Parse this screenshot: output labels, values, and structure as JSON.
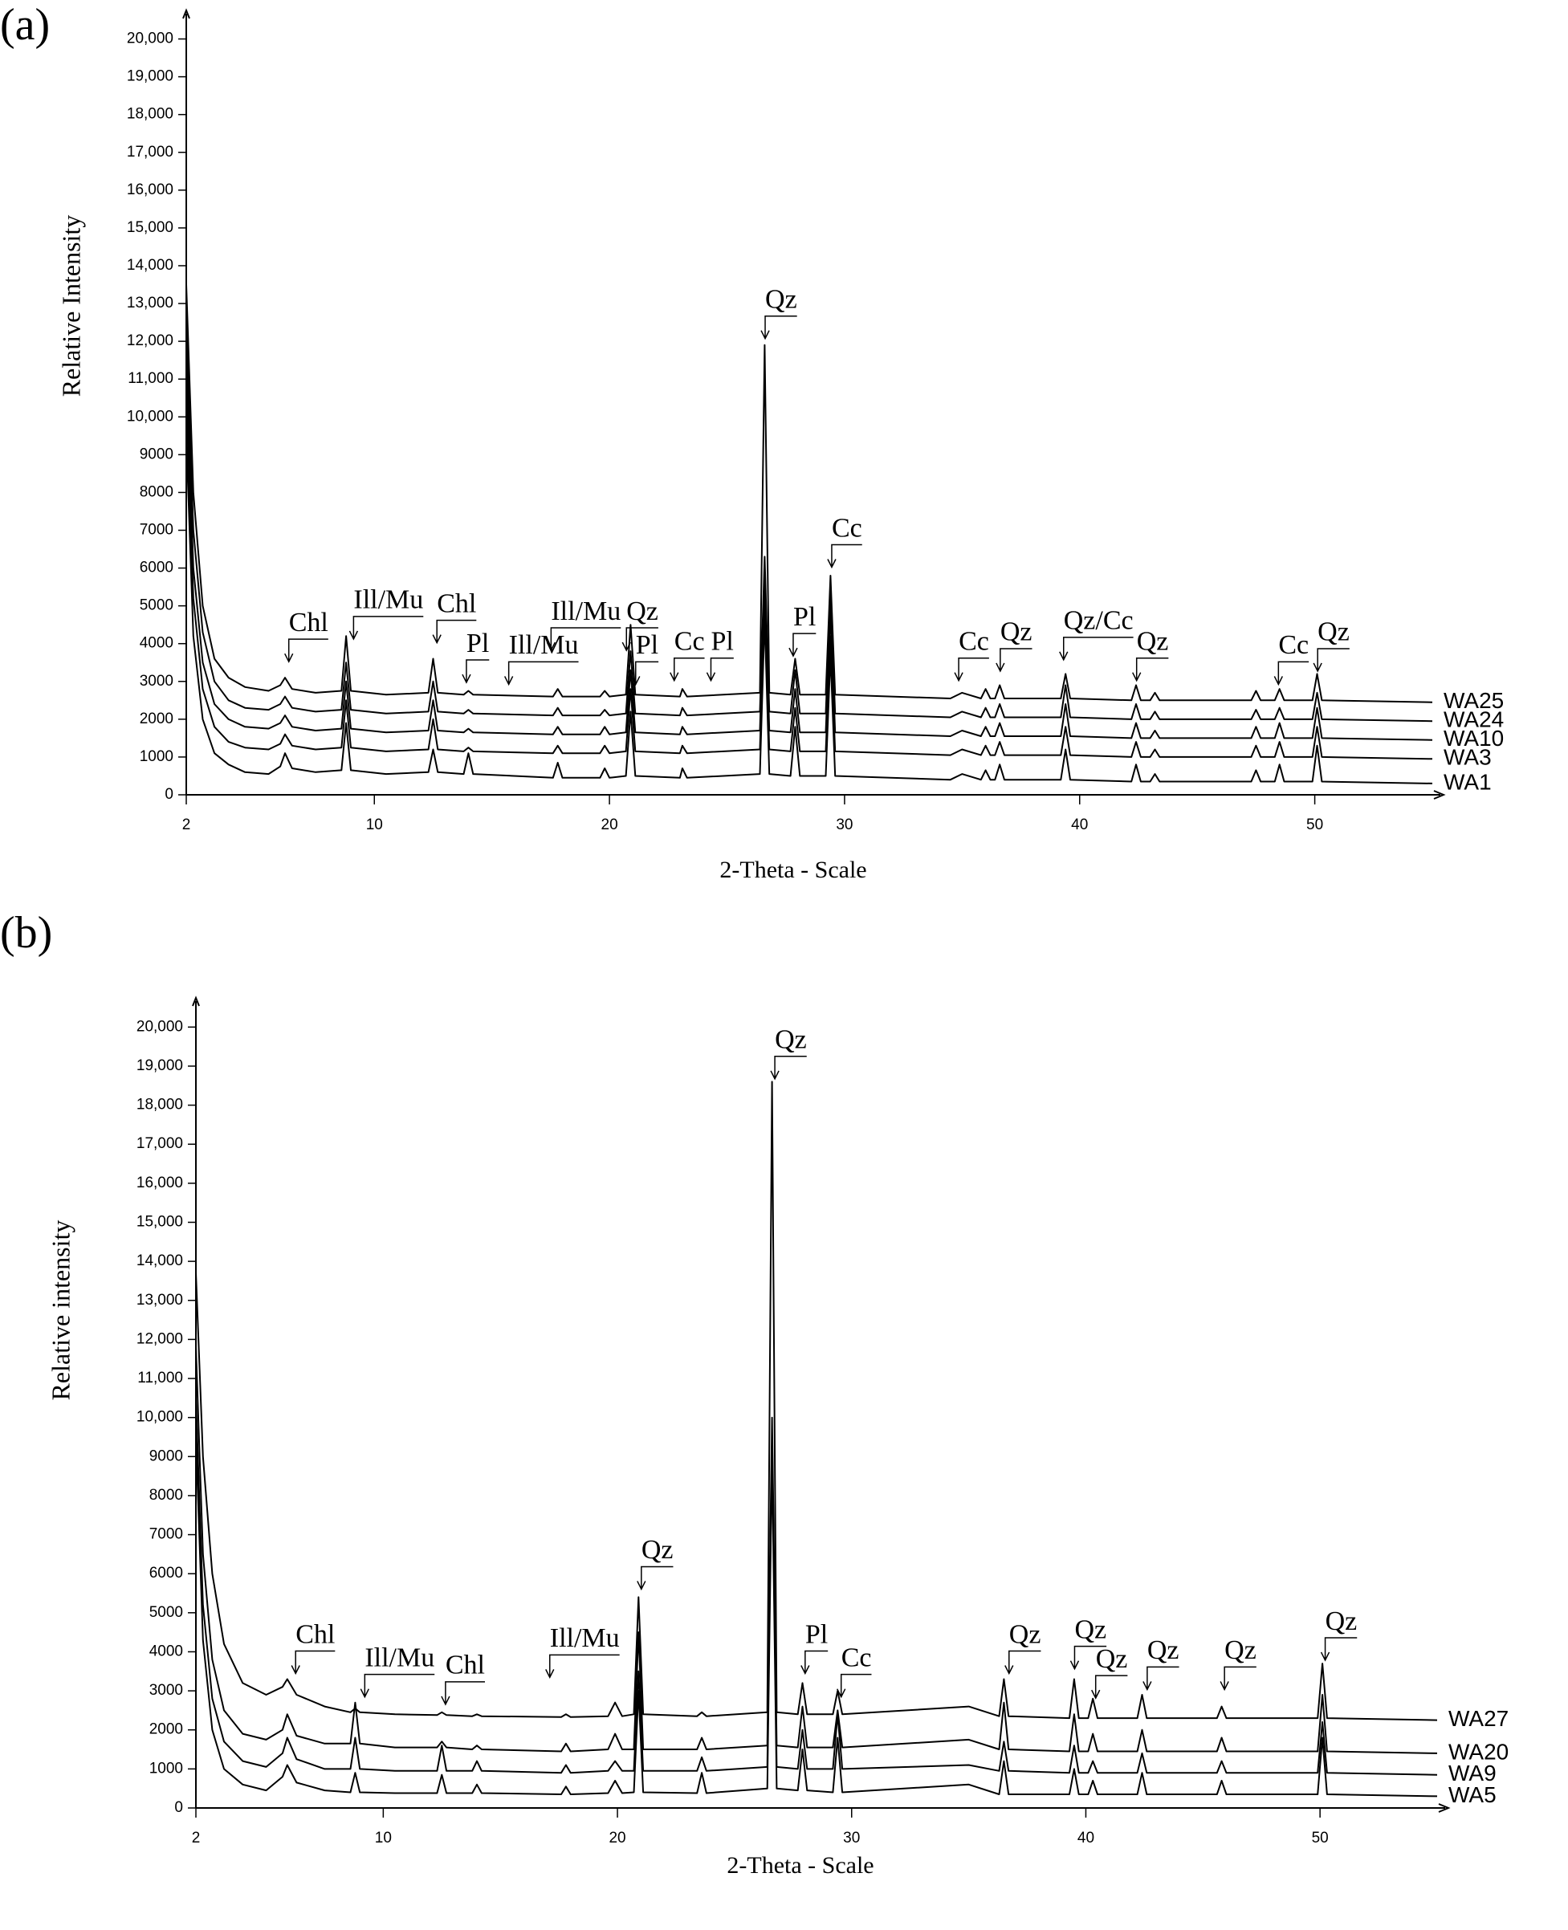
{
  "chart_data": [
    {
      "type": "line",
      "label": "(a)",
      "x_label": "2-Theta - Scale",
      "y_label": "Relative Intensity",
      "xlim": [
        2,
        55
      ],
      "xticks": [
        2,
        10,
        20,
        30,
        40,
        50
      ],
      "ylim": [
        0,
        20500
      ],
      "yticks": [
        0,
        1000,
        2000,
        3000,
        4000,
        5000,
        6000,
        7000,
        8000,
        9000,
        {
          "value": 10000,
          "label": "10,000"
        },
        {
          "value": 11000,
          "label": "11,000"
        },
        {
          "value": 12000,
          "label": "12,000"
        },
        {
          "value": 13000,
          "label": "13,000"
        },
        {
          "value": 14000,
          "label": "14,000"
        },
        {
          "value": 15000,
          "label": "15,000"
        },
        {
          "value": 16000,
          "label": "16,000"
        },
        {
          "value": 17000,
          "label": "17,000"
        },
        {
          "value": 18000,
          "label": "18,000"
        },
        {
          "value": 19000,
          "label": "19,000"
        },
        {
          "value": 20000,
          "label": "20,000"
        }
      ],
      "x": [
        2,
        2.3,
        2.7,
        3.2,
        3.8,
        4.5,
        5.5,
        6.0,
        6.2,
        6.5,
        7.5,
        8.6,
        8.8,
        9.0,
        10.5,
        12.3,
        12.5,
        12.7,
        13.8,
        14.0,
        14.2,
        17.6,
        17.8,
        18.0,
        19.6,
        19.8,
        20.0,
        20.7,
        20.9,
        21.1,
        23.0,
        23.1,
        23.3,
        26.4,
        26.6,
        26.8,
        27.7,
        27.9,
        28.1,
        29.2,
        29.4,
        29.6,
        34.5,
        35.0,
        35.8,
        36.0,
        36.2,
        36.4,
        36.6,
        36.8,
        39.2,
        39.4,
        39.6,
        42.2,
        42.4,
        42.6,
        43.0,
        43.2,
        43.4,
        47.3,
        47.5,
        47.7,
        48.3,
        48.5,
        48.7,
        49.9,
        50.1,
        50.3,
        55
      ],
      "series": [
        {
          "name": "WA25",
          "color": "#000000",
          "values": [
            13500,
            8000,
            5000,
            3600,
            3100,
            2850,
            2750,
            2900,
            3100,
            2800,
            2700,
            2750,
            4200,
            2750,
            2650,
            2700,
            3600,
            2700,
            2650,
            2750,
            2650,
            2600,
            2800,
            2600,
            2600,
            2750,
            2600,
            2650,
            4500,
            2650,
            2600,
            2800,
            2600,
            2700,
            11900,
            2700,
            2650,
            3600,
            2650,
            2650,
            5800,
            2650,
            2550,
            2700,
            2550,
            2800,
            2550,
            2550,
            2900,
            2550,
            2550,
            3200,
            2550,
            2500,
            2900,
            2500,
            2500,
            2700,
            2500,
            2500,
            2750,
            2500,
            2500,
            2800,
            2500,
            2500,
            3200,
            2500,
            2450
          ]
        },
        {
          "name": "WA24",
          "color": "#000000",
          "values": [
            12500,
            7000,
            4300,
            3000,
            2500,
            2300,
            2250,
            2400,
            2600,
            2300,
            2200,
            2250,
            3500,
            2250,
            2150,
            2200,
            3000,
            2200,
            2150,
            2250,
            2150,
            2100,
            2300,
            2100,
            2100,
            2250,
            2100,
            2150,
            3800,
            2150,
            2100,
            2300,
            2100,
            2200,
            6300,
            2200,
            2150,
            3300,
            2150,
            2150,
            5300,
            2150,
            2050,
            2200,
            2050,
            2300,
            2050,
            2050,
            2400,
            2050,
            2050,
            2900,
            2050,
            2000,
            2400,
            2000,
            2000,
            2200,
            2000,
            2000,
            2250,
            2000,
            2000,
            2300,
            2000,
            2000,
            2700,
            2000,
            1950
          ]
        },
        {
          "name": "WA10",
          "color": "#000000",
          "values": [
            11500,
            6000,
            3500,
            2400,
            2000,
            1800,
            1750,
            1900,
            2100,
            1800,
            1700,
            1750,
            3000,
            1750,
            1650,
            1700,
            2500,
            1700,
            1650,
            1750,
            1650,
            1600,
            1800,
            1600,
            1600,
            1800,
            1600,
            1650,
            3300,
            1650,
            1600,
            1800,
            1600,
            1700,
            5800,
            1700,
            1650,
            2800,
            1650,
            1650,
            4800,
            1650,
            1550,
            1700,
            1550,
            1800,
            1550,
            1550,
            1900,
            1550,
            1550,
            2400,
            1550,
            1500,
            1900,
            1500,
            1500,
            1700,
            1500,
            1500,
            1800,
            1500,
            1500,
            1900,
            1500,
            1500,
            2300,
            1500,
            1450
          ]
        },
        {
          "name": "WA3",
          "color": "#000000",
          "values": [
            10500,
            5200,
            2800,
            1800,
            1400,
            1250,
            1200,
            1350,
            1600,
            1300,
            1200,
            1250,
            2500,
            1250,
            1150,
            1200,
            2000,
            1200,
            1150,
            1250,
            1150,
            1100,
            1300,
            1100,
            1100,
            1300,
            1100,
            1150,
            2800,
            1150,
            1100,
            1300,
            1100,
            1200,
            5200,
            1200,
            1150,
            2300,
            1150,
            1150,
            4200,
            1150,
            1050,
            1200,
            1050,
            1300,
            1050,
            1050,
            1400,
            1050,
            1050,
            1800,
            1050,
            1000,
            1400,
            1000,
            1000,
            1200,
            1000,
            1000,
            1300,
            1000,
            1000,
            1400,
            1000,
            1000,
            1800,
            1000,
            950
          ]
        },
        {
          "name": "WA1",
          "color": "#000000",
          "values": [
            9500,
            4200,
            2000,
            1100,
            800,
            600,
            550,
            750,
            1100,
            700,
            600,
            650,
            1900,
            650,
            550,
            600,
            1200,
            600,
            550,
            1100,
            550,
            450,
            850,
            450,
            450,
            700,
            450,
            500,
            2200,
            500,
            450,
            700,
            450,
            550,
            4700,
            550,
            500,
            1800,
            500,
            500,
            3700,
            500,
            400,
            550,
            400,
            650,
            400,
            400,
            800,
            400,
            400,
            1200,
            400,
            350,
            800,
            350,
            350,
            550,
            350,
            350,
            650,
            350,
            350,
            800,
            350,
            350,
            1300,
            350,
            300
          ]
        }
      ],
      "annotations": [
        {
          "text": "Chl",
          "x": 7.2,
          "y": 4500
        },
        {
          "text": "Ill/Mu",
          "x": 10.6,
          "y": 5100
        },
        {
          "text": "Chl",
          "x": 13.5,
          "y": 5000
        },
        {
          "text": "Pl",
          "x": 14.4,
          "y": 3950
        },
        {
          "text": "Ill/Mu",
          "x": 17.2,
          "y": 3900
        },
        {
          "text": "Ill/Mu",
          "x": 19.0,
          "y": 4800
        },
        {
          "text": "Qz",
          "x": 21.4,
          "y": 4800
        },
        {
          "text": "Pl",
          "x": 21.6,
          "y": 3900
        },
        {
          "text": "Cc",
          "x": 23.4,
          "y": 4000
        },
        {
          "text": "Pl",
          "x": 24.8,
          "y": 4000
        },
        {
          "text": "Qz",
          "x": 27.3,
          "y": 13050
        },
        {
          "text": "Pl",
          "x": 28.3,
          "y": 4650
        },
        {
          "text": "Cc",
          "x": 30.1,
          "y": 7000
        },
        {
          "text": "Cc",
          "x": 35.5,
          "y": 4000
        },
        {
          "text": "Qz",
          "x": 37.3,
          "y": 4250
        },
        {
          "text": "Qz/Cc",
          "x": 40.8,
          "y": 4550
        },
        {
          "text": "Qz",
          "x": 43.1,
          "y": 4000
        },
        {
          "text": "Cc",
          "x": 49.1,
          "y": 3900
        },
        {
          "text": "Qz",
          "x": 50.8,
          "y": 4250
        }
      ]
    },
    {
      "type": "line",
      "label": "(b)",
      "x_label": "2-Theta - Scale",
      "y_label": "Relative intensity",
      "xlim": [
        2,
        55
      ],
      "xticks": [
        2,
        10,
        20,
        30,
        40,
        50
      ],
      "ylim": [
        0,
        20500
      ],
      "yticks": [
        0,
        1000,
        2000,
        3000,
        4000,
        5000,
        6000,
        7000,
        8000,
        9000,
        {
          "value": 10000,
          "label": "10,000"
        },
        {
          "value": 11000,
          "label": "11,000"
        },
        {
          "value": 12000,
          "label": "12,000"
        },
        {
          "value": 13000,
          "label": "13,000"
        },
        {
          "value": 14000,
          "label": "14,000"
        },
        {
          "value": 15000,
          "label": "15,000"
        },
        {
          "value": 16000,
          "label": "16,000"
        },
        {
          "value": 17000,
          "label": "17,000"
        },
        {
          "value": 18000,
          "label": "18,000"
        },
        {
          "value": 19000,
          "label": "19,000"
        },
        {
          "value": 20000,
          "label": "20,000"
        }
      ],
      "x": [
        2,
        2.3,
        2.7,
        3.2,
        4.0,
        5.0,
        5.7,
        5.9,
        6.3,
        7.5,
        8.6,
        8.8,
        9.0,
        10.5,
        12.3,
        12.5,
        12.7,
        13.8,
        14.0,
        14.2,
        17.6,
        17.8,
        18.0,
        19.6,
        19.9,
        20.2,
        20.7,
        20.9,
        21.1,
        23.4,
        23.6,
        23.8,
        26.4,
        26.6,
        26.8,
        27.7,
        27.9,
        28.1,
        29.2,
        29.4,
        29.6,
        35.0,
        36.3,
        36.5,
        36.7,
        39.3,
        39.5,
        39.7,
        40.1,
        40.3,
        40.5,
        42.2,
        42.4,
        42.6,
        45.6,
        45.8,
        46.0,
        49.9,
        50.1,
        50.3,
        55
      ],
      "series": [
        {
          "name": "WA27",
          "color": "#000000",
          "values": [
            13700,
            9000,
            6000,
            4200,
            3200,
            2900,
            3100,
            3300,
            2900,
            2600,
            2450,
            2550,
            2450,
            2400,
            2380,
            2450,
            2380,
            2350,
            2400,
            2350,
            2330,
            2400,
            2330,
            2350,
            2700,
            2350,
            2400,
            5400,
            2400,
            2350,
            2450,
            2350,
            2450,
            18600,
            2450,
            2400,
            3200,
            2400,
            2400,
            3000,
            2400,
            2600,
            2350,
            3300,
            2350,
            2300,
            3300,
            2300,
            2300,
            2800,
            2300,
            2300,
            2900,
            2300,
            2300,
            2600,
            2300,
            2300,
            3700,
            2300,
            2250
          ]
        },
        {
          "name": "WA20",
          "color": "#000000",
          "values": [
            11800,
            6500,
            3800,
            2500,
            1900,
            1750,
            2000,
            2400,
            1850,
            1650,
            1650,
            2700,
            1650,
            1550,
            1550,
            1700,
            1550,
            1500,
            1600,
            1500,
            1450,
            1650,
            1450,
            1500,
            1900,
            1500,
            1500,
            4500,
            1500,
            1500,
            1800,
            1500,
            1600,
            10000,
            1600,
            1550,
            2600,
            1550,
            1550,
            2500,
            1550,
            1750,
            1500,
            2700,
            1500,
            1450,
            2400,
            1450,
            1450,
            1900,
            1450,
            1450,
            2000,
            1450,
            1450,
            1800,
            1450,
            1450,
            2900,
            1450,
            1400
          ]
        },
        {
          "name": "WA9",
          "color": "#000000",
          "values": [
            10500,
            5200,
            2800,
            1700,
            1200,
            1050,
            1400,
            1800,
            1250,
            1000,
            1000,
            1800,
            1000,
            950,
            950,
            1600,
            950,
            950,
            1200,
            950,
            900,
            1100,
            900,
            950,
            1200,
            950,
            950,
            3500,
            950,
            950,
            1300,
            950,
            1050,
            9500,
            1050,
            1000,
            2000,
            1000,
            1000,
            2400,
            1000,
            1100,
            950,
            1700,
            950,
            900,
            1600,
            900,
            900,
            1200,
            900,
            900,
            1400,
            900,
            900,
            1200,
            900,
            900,
            2200,
            900,
            850
          ]
        },
        {
          "name": "WA5",
          "color": "#000000",
          "values": [
            9500,
            4300,
            2000,
            1000,
            600,
            450,
            800,
            1100,
            650,
            450,
            400,
            900,
            400,
            380,
            380,
            850,
            380,
            380,
            600,
            380,
            350,
            550,
            350,
            380,
            700,
            380,
            400,
            3000,
            400,
            380,
            900,
            380,
            500,
            9000,
            500,
            450,
            1500,
            450,
            400,
            1800,
            400,
            600,
            350,
            1200,
            350,
            350,
            1000,
            350,
            350,
            700,
            350,
            350,
            900,
            350,
            350,
            700,
            350,
            350,
            1800,
            350,
            300
          ]
        }
      ],
      "annotations": [
        {
          "text": "Chl",
          "x": 7.1,
          "y": 4390
        },
        {
          "text": "Ill/Mu",
          "x": 10.7,
          "y": 3790
        },
        {
          "text": "Chl",
          "x": 13.5,
          "y": 3600
        },
        {
          "text": "Ill/Mu",
          "x": 18.6,
          "y": 4290
        },
        {
          "text": "Qz",
          "x": 21.7,
          "y": 6550
        },
        {
          "text": "Qz",
          "x": 27.4,
          "y": 19620
        },
        {
          "text": "Pl",
          "x": 28.5,
          "y": 4390
        },
        {
          "text": "Cc",
          "x": 30.2,
          "y": 3790
        },
        {
          "text": "Qz",
          "x": 37.4,
          "y": 4390
        },
        {
          "text": "Qz",
          "x": 40.2,
          "y": 4510
        },
        {
          "text": "Qz",
          "x": 41.1,
          "y": 3760
        },
        {
          "text": "Qz",
          "x": 43.3,
          "y": 3980
        },
        {
          "text": "Qz",
          "x": 46.6,
          "y": 3980
        },
        {
          "text": "Qz",
          "x": 50.9,
          "y": 4730
        }
      ]
    }
  ]
}
